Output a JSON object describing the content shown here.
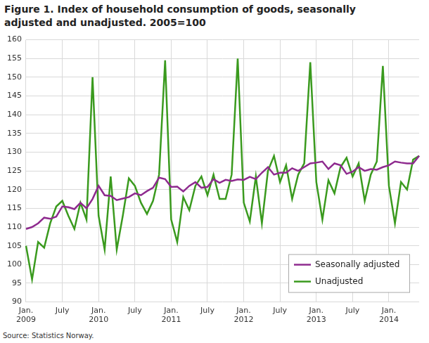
{
  "chart_data": {
    "type": "line",
    "title": "Figure 1. Index of household consumption of goods, seasonally adjusted and unadjusted. 2005=100",
    "source": "Source: Statistics Norway.",
    "categories": [
      "Jan. 2009",
      null,
      null,
      null,
      null,
      null,
      "July",
      null,
      null,
      null,
      null,
      null,
      "Jan. 2010",
      null,
      null,
      null,
      null,
      null,
      "July",
      null,
      null,
      null,
      null,
      null,
      "Jan. 2011",
      null,
      null,
      null,
      null,
      null,
      "July",
      null,
      null,
      null,
      null,
      null,
      "Jan. 2012",
      null,
      null,
      null,
      null,
      null,
      "July",
      null,
      null,
      null,
      null,
      null,
      "Jan. 2013",
      null,
      null,
      null,
      null,
      null,
      "July",
      null,
      null,
      null,
      null,
      null,
      "Jan. 2014",
      null,
      null,
      null,
      null,
      null
    ],
    "series": [
      {
        "name": "Seasonally adjusted",
        "color": "#8e2a8e",
        "values": [
          109.5,
          110,
          111,
          112.5,
          112.2,
          112.8,
          115.5,
          115.3,
          114.8,
          116.5,
          115,
          117.5,
          121,
          118.5,
          118.3,
          117.2,
          117.6,
          118,
          119,
          118.5,
          119.6,
          120.5,
          123.2,
          122.8,
          120.7,
          120.8,
          119.5,
          121,
          122,
          120.5,
          120.7,
          122.8,
          121.8,
          122.6,
          122.3,
          122.7,
          122.6,
          123.4,
          122.8,
          124.5,
          126,
          124,
          124.5,
          124.5,
          125.7,
          125,
          126,
          127,
          127.2,
          127.5,
          125.5,
          127,
          126.5,
          124.2,
          124.8,
          126,
          125,
          125.5,
          125.3,
          126,
          126.5,
          127.5,
          127.2,
          127,
          127,
          129
        ]
      },
      {
        "name": "Unadjusted",
        "color": "#3a9a1e",
        "values": [
          105,
          96,
          106,
          104.5,
          111,
          115.5,
          117,
          113,
          109.5,
          116.5,
          112,
          150,
          113,
          104,
          123.5,
          104,
          113,
          123,
          121,
          116.5,
          113.5,
          117,
          124,
          154.5,
          112,
          106,
          118,
          114.5,
          121,
          123.5,
          118.5,
          124,
          117.5,
          117.5,
          124,
          155,
          116.5,
          111.5,
          123.5,
          111,
          125,
          129,
          122,
          126.5,
          117.5,
          124,
          127,
          154,
          122,
          112,
          122.5,
          119,
          126,
          128.5,
          123.5,
          127,
          117,
          124,
          127.5,
          153,
          121,
          111,
          122,
          120,
          128,
          129
        ]
      }
    ],
    "ylim": [
      90,
      160
    ],
    "yticks": [
      90,
      95,
      100,
      105,
      110,
      115,
      120,
      125,
      130,
      135,
      140,
      145,
      150,
      155,
      160
    ],
    "grid": true,
    "legend": "lower right"
  }
}
